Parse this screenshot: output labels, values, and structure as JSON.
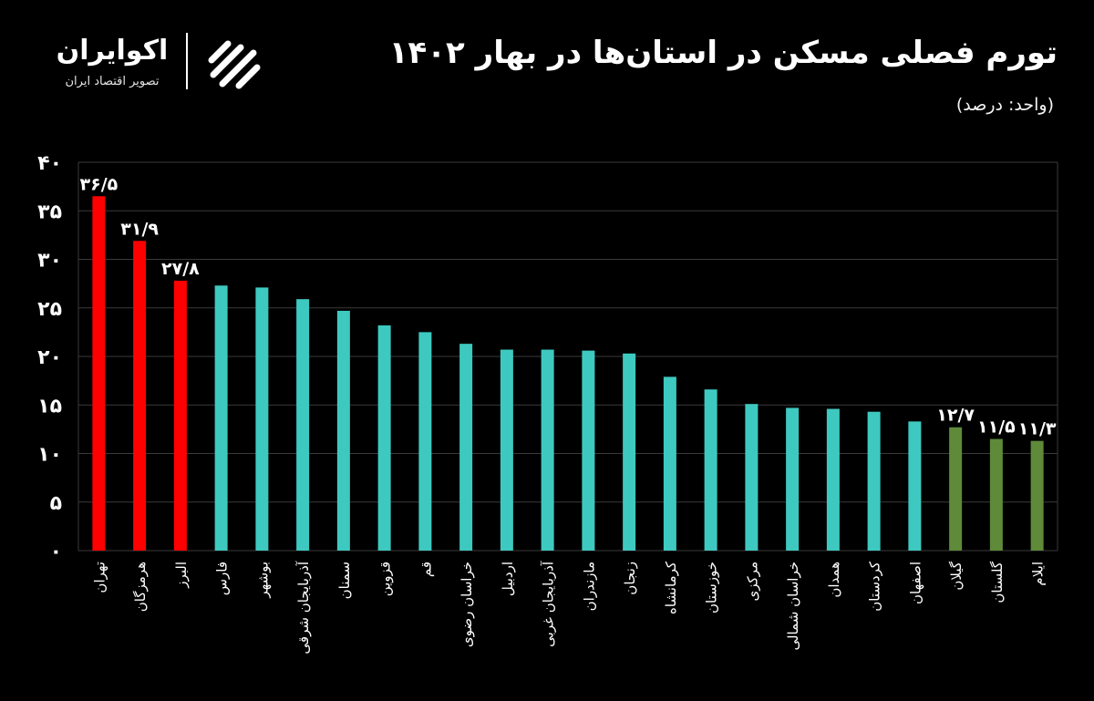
{
  "header": {
    "title": "تورم فصلی مسکن در استان‌ها در بهار ۱۴۰۲",
    "unit_note": "(واحد: درصد)"
  },
  "logo": {
    "name": "اکوایران",
    "tagline": "تصویر اقتصاد ایران"
  },
  "colors": {
    "background": "#000000",
    "top": "#ff0000",
    "middle": "#3ec9c0",
    "bottom": "#5e8a3a",
    "grid": "#3a3a3a",
    "text": "#ffffff"
  },
  "chart_data": {
    "type": "bar",
    "categories": [
      "تهران",
      "هرمزگان",
      "البرز",
      "فارس",
      "بوشهر",
      "آذربایجان شرقی",
      "سمنان",
      "قزوین",
      "قم",
      "خراسان رضوی",
      "اردبیل",
      "آذربایجان غربی",
      "مازندران",
      "زنجان",
      "کرمانشاه",
      "خوزستان",
      "مرکزی",
      "خراسان شمالی",
      "همدان",
      "کردستان",
      "اصفهان",
      "گیلان",
      "گلستان",
      "ایلام"
    ],
    "values": [
      36.5,
      31.9,
      27.8,
      27.3,
      27.1,
      25.9,
      24.7,
      23.2,
      22.5,
      21.3,
      20.7,
      20.7,
      20.6,
      20.3,
      17.9,
      16.6,
      15.1,
      14.7,
      14.6,
      14.3,
      13.3,
      12.7,
      11.5,
      11.3
    ],
    "data_labels": [
      "۳۶/۵",
      "۳۱/۹",
      "۲۷/۸",
      "",
      "",
      "",
      "",
      "",
      "",
      "",
      "",
      "",
      "",
      "",
      "",
      "",
      "",
      "",
      "",
      "",
      "",
      "۱۲/۷",
      "۱۱/۵",
      "۱۱/۳"
    ],
    "color_groups": [
      "top",
      "top",
      "top",
      "middle",
      "middle",
      "middle",
      "middle",
      "middle",
      "middle",
      "middle",
      "middle",
      "middle",
      "middle",
      "middle",
      "middle",
      "middle",
      "middle",
      "middle",
      "middle",
      "middle",
      "middle",
      "bottom",
      "bottom",
      "bottom"
    ],
    "y_ticks": [
      "۰",
      "۵",
      "۱۰",
      "۱۵",
      "۲۰",
      "۲۵",
      "۳۰",
      "۳۵",
      "۴۰"
    ],
    "ylim": [
      0,
      40
    ],
    "y_step": 5,
    "grid": true,
    "legend": "none"
  }
}
